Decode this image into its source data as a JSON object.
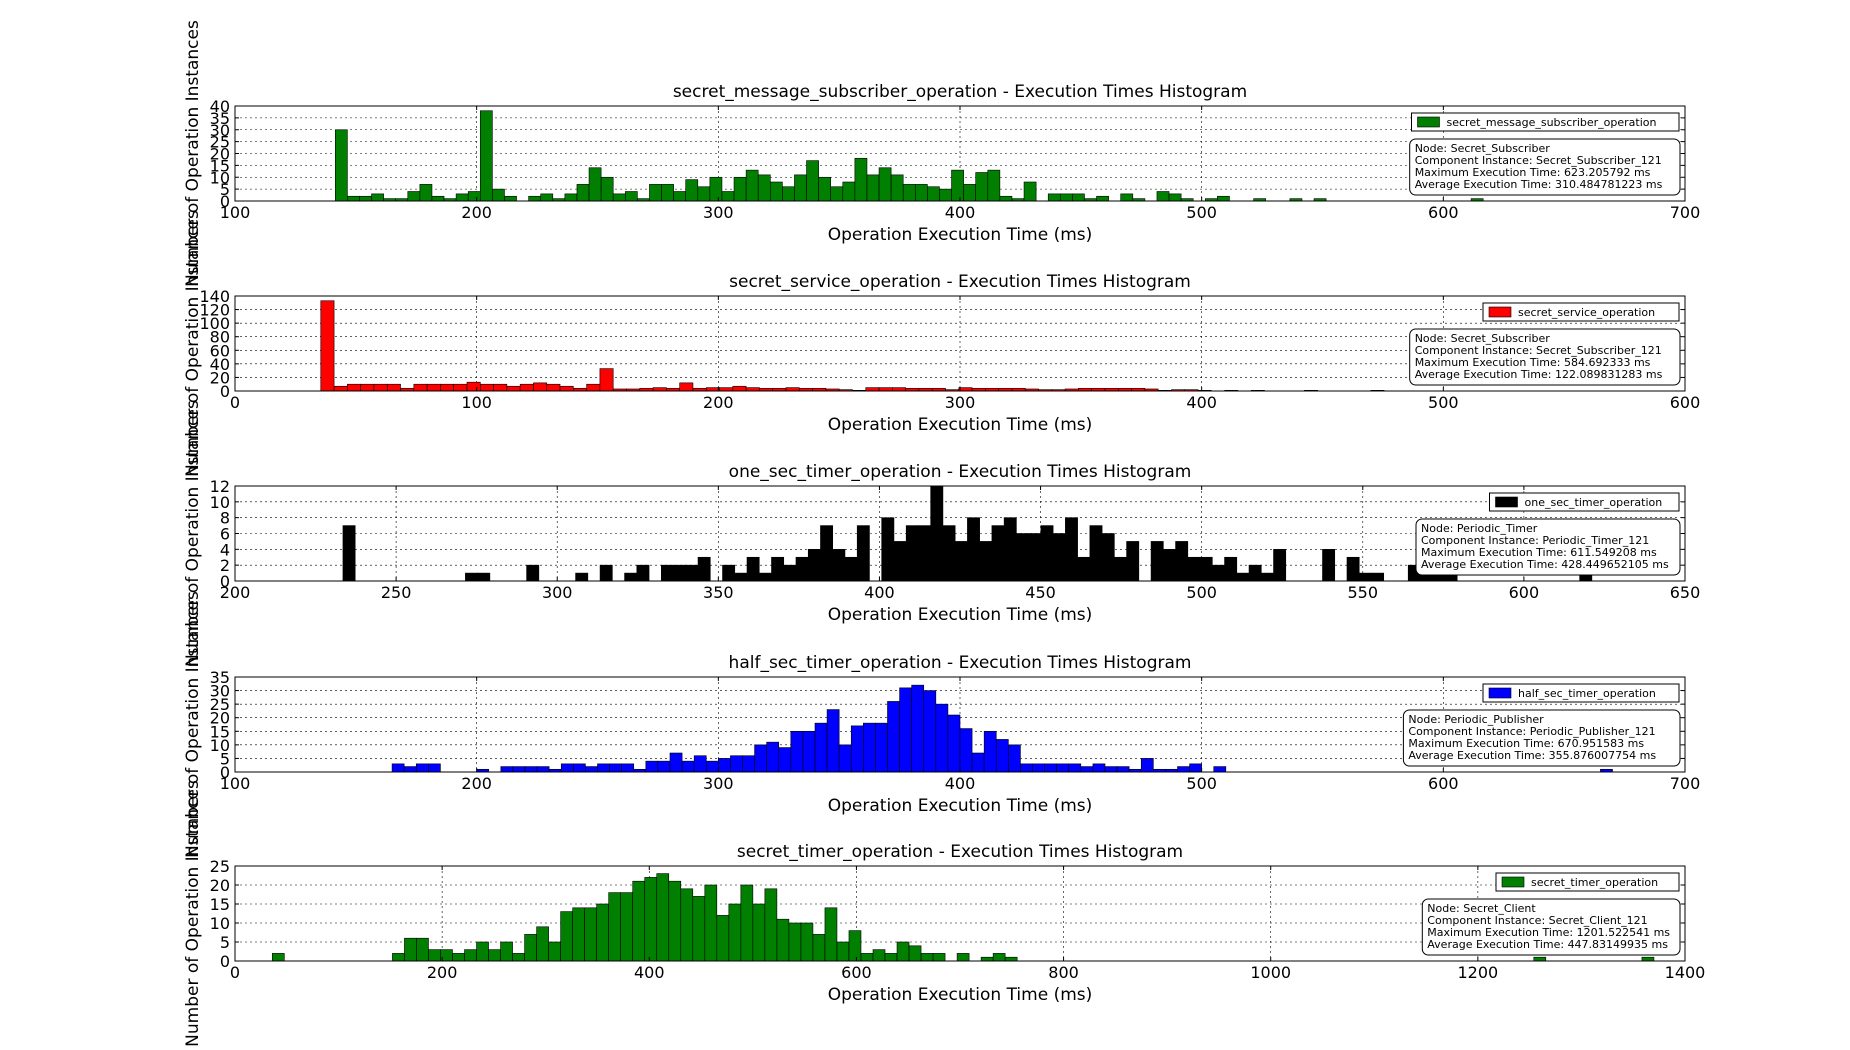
{
  "chart_data": [
    {
      "type": "bar",
      "title": "secret_message_subscriber_operation - Execution Times Histogram",
      "xlabel": "Operation Execution Time (ms)",
      "ylabel": "Number of Operation Instances",
      "xlim": [
        100,
        700
      ],
      "ylim": [
        0,
        40
      ],
      "xticks": [
        "100",
        "200",
        "300",
        "400",
        "500",
        "600",
        "700"
      ],
      "yticks": [
        "0",
        "5",
        "10",
        "15",
        "20",
        "25",
        "30",
        "35",
        "40"
      ],
      "grid": true,
      "legend": "secret_message_subscriber_operation",
      "legend_position": "top-right",
      "color": "#007f00",
      "info": [
        "Node: Secret_Subscriber",
        "Component Instance: Secret_Subscriber_121",
        "Maximum Execution Time: 623.205792 ms",
        "Average Execution Time: 310.484781223 ms"
      ],
      "bin_start": 141.5,
      "bin_width": 5,
      "values": [
        30,
        2,
        2,
        3,
        1,
        1,
        4,
        7,
        2,
        1,
        3,
        4,
        38,
        5,
        2,
        0,
        2,
        3,
        1,
        3,
        7,
        14,
        10,
        3,
        4,
        1,
        7,
        7,
        4,
        9,
        6,
        10,
        4,
        10,
        13,
        11,
        8,
        6,
        11,
        17,
        10,
        6,
        8,
        18,
        11,
        14,
        11,
        7,
        7,
        6,
        5,
        13,
        7,
        12,
        13,
        2,
        1,
        8,
        0,
        3,
        3,
        3,
        1,
        2,
        0,
        3,
        1,
        0,
        4,
        3,
        1,
        0,
        1,
        2,
        0,
        0,
        1,
        0,
        0,
        1,
        0,
        1,
        0,
        0,
        0,
        0,
        0,
        0,
        0,
        0,
        0,
        0,
        0,
        0,
        1,
        0,
        0,
        0,
        0,
        0,
        0,
        0,
        0,
        0,
        0,
        0,
        0,
        0,
        0,
        0,
        0,
        0,
        0,
        0,
        0,
        0,
        0,
        0,
        0,
        0,
        0,
        0,
        0,
        0,
        0,
        0,
        1
      ]
    },
    {
      "type": "bar",
      "title": "secret_service_operation - Execution Times Histogram",
      "xlabel": "Operation Execution Time (ms)",
      "ylabel": "Number of Operation Instances",
      "xlim": [
        0,
        600
      ],
      "ylim": [
        0,
        140
      ],
      "xticks": [
        "0",
        "100",
        "200",
        "300",
        "400",
        "500",
        "600"
      ],
      "yticks": [
        "0",
        "20",
        "40",
        "60",
        "80",
        "100",
        "120",
        "140"
      ],
      "grid": true,
      "legend": "secret_service_operation",
      "legend_position": "top-right",
      "color": "#ff0000",
      "info": [
        "Node: Secret_Subscriber",
        "Component Instance: Secret_Subscriber_121",
        "Maximum Execution Time: 584.692333 ms",
        "Average Execution Time: 122.089831283 ms"
      ],
      "bin_start": 35.5,
      "bin_width": 5.5,
      "values": [
        133,
        7,
        10,
        10,
        10,
        10,
        4,
        10,
        10,
        10,
        10,
        13,
        10,
        10,
        7,
        10,
        12,
        10,
        7,
        4,
        10,
        33,
        3,
        3,
        4,
        5,
        4,
        12,
        4,
        5,
        5,
        7,
        5,
        4,
        4,
        5,
        4,
        4,
        3,
        2,
        1,
        5,
        5,
        5,
        4,
        4,
        4,
        2,
        5,
        4,
        4,
        4,
        4,
        3,
        2,
        2,
        3,
        4,
        4,
        4,
        4,
        4,
        3,
        1,
        2,
        2,
        1,
        0,
        1,
        0,
        1,
        0,
        0,
        0,
        1,
        0,
        0,
        0,
        0,
        1,
        0,
        0,
        0,
        0,
        0,
        0,
        0,
        0,
        0,
        0,
        0,
        0,
        0,
        0,
        0,
        0,
        0,
        0,
        0,
        0,
        0,
        0,
        0,
        0,
        0,
        0,
        0,
        0,
        0,
        0,
        0,
        0,
        0,
        0,
        0,
        0,
        0,
        0,
        0,
        0,
        0,
        0,
        0,
        0,
        0,
        0,
        0,
        0,
        0,
        0,
        0,
        0,
        0,
        0,
        0,
        0,
        0,
        0,
        0,
        0,
        0,
        0,
        0,
        0,
        0,
        0,
        0,
        0,
        0,
        0,
        0,
        0,
        0,
        0,
        0,
        0,
        0,
        0,
        0,
        0,
        0,
        0,
        0,
        0,
        0,
        0,
        0,
        0,
        0,
        0,
        0,
        0,
        0,
        0,
        0,
        0,
        0,
        0,
        0,
        0,
        0,
        0,
        0,
        0,
        0,
        0,
        0,
        0,
        0,
        0,
        0,
        0,
        0,
        0,
        0,
        0,
        0,
        0,
        0,
        0,
        1
      ]
    },
    {
      "type": "bar",
      "title": "one_sec_timer_operation - Execution Times Histogram",
      "xlabel": "Operation Execution Time (ms)",
      "ylabel": "Number of Operation Instances",
      "xlim": [
        200,
        650
      ],
      "ylim": [
        0,
        12
      ],
      "xticks": [
        "200",
        "250",
        "300",
        "350",
        "400",
        "450",
        "500",
        "550",
        "600",
        "650"
      ],
      "yticks": [
        "0",
        "2",
        "4",
        "6",
        "8",
        "10",
        "12"
      ],
      "grid": true,
      "legend": "one_sec_timer_operation",
      "legend_position": "top-right",
      "color": "#000000",
      "info": [
        "Node: Periodic_Timer",
        "Component Instance: Periodic_Timer_121",
        "Maximum Execution Time: 611.549208 ms",
        "Average Execution Time: 428.449652105 ms"
      ],
      "bin_start": 233.5,
      "bin_width": 3.8,
      "values": [
        7,
        0,
        0,
        0,
        0,
        0,
        0,
        0,
        0,
        0,
        1,
        1,
        0,
        0,
        0,
        2,
        0,
        0,
        0,
        1,
        0,
        2,
        0,
        1,
        2,
        0,
        2,
        2,
        2,
        3,
        0,
        2,
        1,
        3,
        1,
        3,
        2,
        3,
        4,
        7,
        4,
        3,
        7,
        0,
        8,
        5,
        7,
        7,
        12,
        7,
        5,
        8,
        5,
        7,
        8,
        6,
        6,
        7,
        6,
        8,
        3,
        7,
        6,
        3,
        5,
        0,
        5,
        4,
        5,
        3,
        3,
        2,
        3,
        1,
        2,
        1,
        4,
        0,
        0,
        0,
        4,
        0,
        3,
        1,
        1,
        0,
        0,
        2,
        2,
        2,
        2,
        0,
        0,
        0,
        0,
        0,
        0,
        0,
        0,
        0,
        0,
        1
      ]
    },
    {
      "type": "bar",
      "title": "half_sec_timer_operation - Execution Times Histogram",
      "xlabel": "Operation Execution Time (ms)",
      "ylabel": "Number of Operation Instances",
      "xlim": [
        100,
        700
      ],
      "ylim": [
        0,
        35
      ],
      "xticks": [
        "100",
        "200",
        "300",
        "400",
        "500",
        "600",
        "700"
      ],
      "yticks": [
        "0",
        "5",
        "10",
        "15",
        "20",
        "25",
        "30",
        "35"
      ],
      "grid": true,
      "legend": "half_sec_timer_operation",
      "legend_position": "top-right",
      "color": "#0000ff",
      "info": [
        "Node: Periodic_Publisher",
        "Component Instance: Periodic_Publisher_121",
        "Maximum Execution Time: 670.951583 ms",
        "Average Execution Time: 355.876007754 ms"
      ],
      "bin_start": 165,
      "bin_width": 5,
      "values": [
        3,
        2,
        3,
        3,
        0,
        0,
        0,
        1,
        0,
        2,
        2,
        2,
        2,
        1,
        3,
        3,
        2,
        3,
        3,
        3,
        1,
        4,
        4,
        7,
        4,
        6,
        4,
        5,
        6,
        6,
        10,
        11,
        9,
        15,
        15,
        18,
        23,
        10,
        17,
        18,
        18,
        26,
        31,
        32,
        30,
        25,
        21,
        16,
        7,
        15,
        12,
        10,
        3,
        3,
        3,
        3,
        3,
        2,
        3,
        2,
        2,
        1,
        5,
        1,
        1,
        2,
        3,
        0,
        2,
        0,
        0,
        0,
        0,
        0,
        0,
        0,
        0,
        0,
        0,
        0,
        0,
        0,
        0,
        0,
        0,
        0,
        0,
        0,
        0,
        0,
        0,
        0,
        0,
        0,
        0,
        0,
        0,
        0,
        0,
        0,
        1
      ]
    },
    {
      "type": "bar",
      "title": "secret_timer_operation - Execution Times Histogram",
      "xlabel": "Operation Execution Time (ms)",
      "ylabel": "Number of Operation Instances",
      "xlim": [
        0,
        1400
      ],
      "ylim": [
        0,
        25
      ],
      "xticks": [
        "0",
        "200",
        "400",
        "600",
        "800",
        "1000",
        "1200",
        "1400"
      ],
      "yticks": [
        "0",
        "5",
        "10",
        "15",
        "20",
        "25"
      ],
      "grid": true,
      "legend": "secret_timer_operation",
      "legend_position": "top-right",
      "color": "#007f00",
      "info": [
        "Node: Secret_Client",
        "Component Instance: Secret_Client_121",
        "Maximum Execution Time: 1201.522541 ms",
        "Average Execution Time: 447.83149935 ms"
      ],
      "bin_start": 36,
      "bin_width": 11.6,
      "values": [
        2,
        0,
        0,
        0,
        0,
        0,
        0,
        0,
        0,
        0,
        2,
        6,
        6,
        3,
        3,
        2,
        3,
        5,
        3,
        5,
        2,
        7,
        9,
        5,
        13,
        14,
        14,
        15,
        18,
        18,
        21,
        22,
        23,
        21,
        19,
        17,
        20,
        12,
        15,
        20,
        15,
        19,
        11,
        10,
        10,
        7,
        14,
        5,
        8,
        2,
        3,
        2,
        5,
        4,
        2,
        2,
        0,
        2,
        0,
        1,
        2,
        1,
        0,
        0,
        0,
        0,
        0,
        0,
        0,
        0,
        0,
        0,
        0,
        0,
        0,
        0,
        0,
        0,
        0,
        0,
        0,
        0,
        0,
        0,
        0,
        0,
        0,
        0,
        0,
        0,
        0,
        0,
        0,
        0,
        0,
        0,
        0,
        0,
        0,
        0,
        0,
        0,
        0,
        0,
        0,
        1,
        0,
        0,
        0,
        0,
        0,
        0,
        0,
        0,
        1
      ]
    }
  ]
}
